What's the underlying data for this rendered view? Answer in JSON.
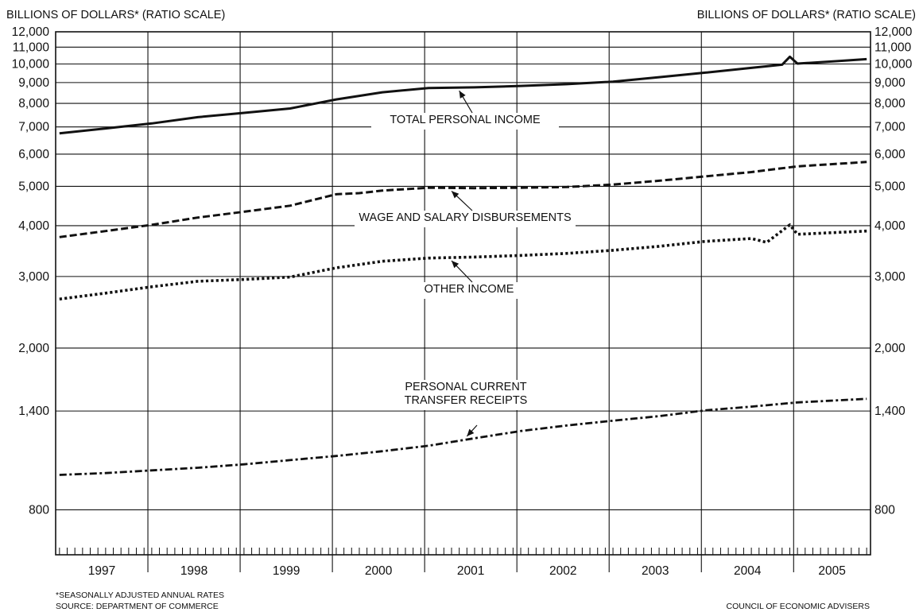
{
  "chart_data": {
    "type": "line",
    "scale": "log",
    "y_label_left": "BILLIONS OF DOLLARS* (RATIO SCALE)",
    "y_label_right": "BILLIONS OF DOLLARS* (RATIO SCALE)",
    "y_ticks": [
      {
        "value": 800,
        "label": "800"
      },
      {
        "value": 1400,
        "label": "1,400"
      },
      {
        "value": 2000,
        "label": "2,000"
      },
      {
        "value": 3000,
        "label": "3,000"
      },
      {
        "value": 4000,
        "label": "4,000"
      },
      {
        "value": 5000,
        "label": "5,000"
      },
      {
        "value": 6000,
        "label": "6,000"
      },
      {
        "value": 7000,
        "label": "7,000"
      },
      {
        "value": 8000,
        "label": "8,000"
      },
      {
        "value": 9000,
        "label": "9,000"
      },
      {
        "value": 10000,
        "label": "10,000"
      },
      {
        "value": 11000,
        "label": "11,000"
      },
      {
        "value": 12000,
        "label": "12,000"
      }
    ],
    "ylim": [
      620,
      12000
    ],
    "x_categories": [
      "1997",
      "1998",
      "1999",
      "2000",
      "2001",
      "2002",
      "2003",
      "2004",
      "2005"
    ],
    "x_range": [
      "1997-01",
      "2005-12"
    ],
    "months_shown": 106,
    "grid": true,
    "series": [
      {
        "name": "TOTAL PERSONAL INCOME",
        "style": "solid",
        "points": [
          [
            "1997-01",
            6750
          ],
          [
            "1997-07",
            6940
          ],
          [
            "1998-01",
            7140
          ],
          [
            "1998-07",
            7400
          ],
          [
            "1999-01",
            7580
          ],
          [
            "1999-07",
            7770
          ],
          [
            "2000-01",
            8180
          ],
          [
            "2000-07",
            8520
          ],
          [
            "2001-01",
            8730
          ],
          [
            "2001-07",
            8760
          ],
          [
            "2002-01",
            8830
          ],
          [
            "2002-07",
            8920
          ],
          [
            "2003-01",
            9050
          ],
          [
            "2003-07",
            9280
          ],
          [
            "2004-01",
            9520
          ],
          [
            "2004-07",
            9780
          ],
          [
            "2004-11",
            9960
          ],
          [
            "2004-12",
            10420
          ],
          [
            "2005-01",
            10020
          ],
          [
            "2005-06",
            10160
          ],
          [
            "2005-10",
            10280
          ]
        ]
      },
      {
        "name": "WAGE AND SALARY DISBURSEMENTS",
        "style": "dashed",
        "points": [
          [
            "1997-01",
            3750
          ],
          [
            "1997-07",
            3880
          ],
          [
            "1998-01",
            4020
          ],
          [
            "1998-07",
            4190
          ],
          [
            "1999-01",
            4330
          ],
          [
            "1999-07",
            4480
          ],
          [
            "2000-01",
            4780
          ],
          [
            "2000-04",
            4810
          ],
          [
            "2000-07",
            4880
          ],
          [
            "2001-01",
            4960
          ],
          [
            "2001-07",
            4950
          ],
          [
            "2002-01",
            4960
          ],
          [
            "2002-07",
            4980
          ],
          [
            "2003-01",
            5050
          ],
          [
            "2003-07",
            5160
          ],
          [
            "2004-01",
            5290
          ],
          [
            "2004-07",
            5420
          ],
          [
            "2005-01",
            5600
          ],
          [
            "2005-10",
            5740
          ]
        ]
      },
      {
        "name": "OTHER INCOME",
        "style": "dotted",
        "points": [
          [
            "1997-01",
            2640
          ],
          [
            "1997-07",
            2730
          ],
          [
            "1998-01",
            2830
          ],
          [
            "1998-07",
            2920
          ],
          [
            "1999-01",
            2950
          ],
          [
            "1999-07",
            2990
          ],
          [
            "2000-01",
            3150
          ],
          [
            "2000-07",
            3270
          ],
          [
            "2001-01",
            3330
          ],
          [
            "2001-07",
            3350
          ],
          [
            "2002-01",
            3380
          ],
          [
            "2002-07",
            3420
          ],
          [
            "2003-01",
            3480
          ],
          [
            "2003-07",
            3560
          ],
          [
            "2004-01",
            3660
          ],
          [
            "2004-07",
            3720
          ],
          [
            "2004-09",
            3640
          ],
          [
            "2004-12",
            4020
          ],
          [
            "2005-01",
            3810
          ],
          [
            "2005-10",
            3880
          ]
        ]
      },
      {
        "name": "PERSONAL CURRENT TRANSFER RECEIPTS",
        "style": "dash-dot",
        "points": [
          [
            "1997-01",
            975
          ],
          [
            "1997-07",
            985
          ],
          [
            "1998-01",
            1000
          ],
          [
            "1998-07",
            1015
          ],
          [
            "1999-01",
            1035
          ],
          [
            "1999-07",
            1060
          ],
          [
            "2000-01",
            1085
          ],
          [
            "2000-07",
            1115
          ],
          [
            "2001-01",
            1150
          ],
          [
            "2001-07",
            1200
          ],
          [
            "2002-01",
            1250
          ],
          [
            "2002-07",
            1290
          ],
          [
            "2003-01",
            1325
          ],
          [
            "2003-07",
            1360
          ],
          [
            "2004-01",
            1405
          ],
          [
            "2004-07",
            1435
          ],
          [
            "2005-01",
            1470
          ],
          [
            "2005-10",
            1500
          ]
        ]
      }
    ],
    "annotations": [
      {
        "lines": [
          "TOTAL PERSONAL INCOME"
        ],
        "series": "TOTAL PERSONAL INCOME"
      },
      {
        "lines": [
          "WAGE AND SALARY DISBURSEMENTS"
        ],
        "series": "WAGE AND SALARY DISBURSEMENTS"
      },
      {
        "lines": [
          "OTHER INCOME"
        ],
        "series": "OTHER INCOME"
      },
      {
        "lines": [
          "PERSONAL CURRENT",
          "TRANSFER RECEIPTS"
        ],
        "series": "PERSONAL CURRENT TRANSFER RECEIPTS"
      }
    ]
  },
  "footnotes": {
    "note": "*SEASONALLY ADJUSTED ANNUAL RATES",
    "source": "SOURCE: DEPARTMENT OF COMMERCE",
    "credit": "COUNCIL OF ECONOMIC ADVISERS"
  }
}
